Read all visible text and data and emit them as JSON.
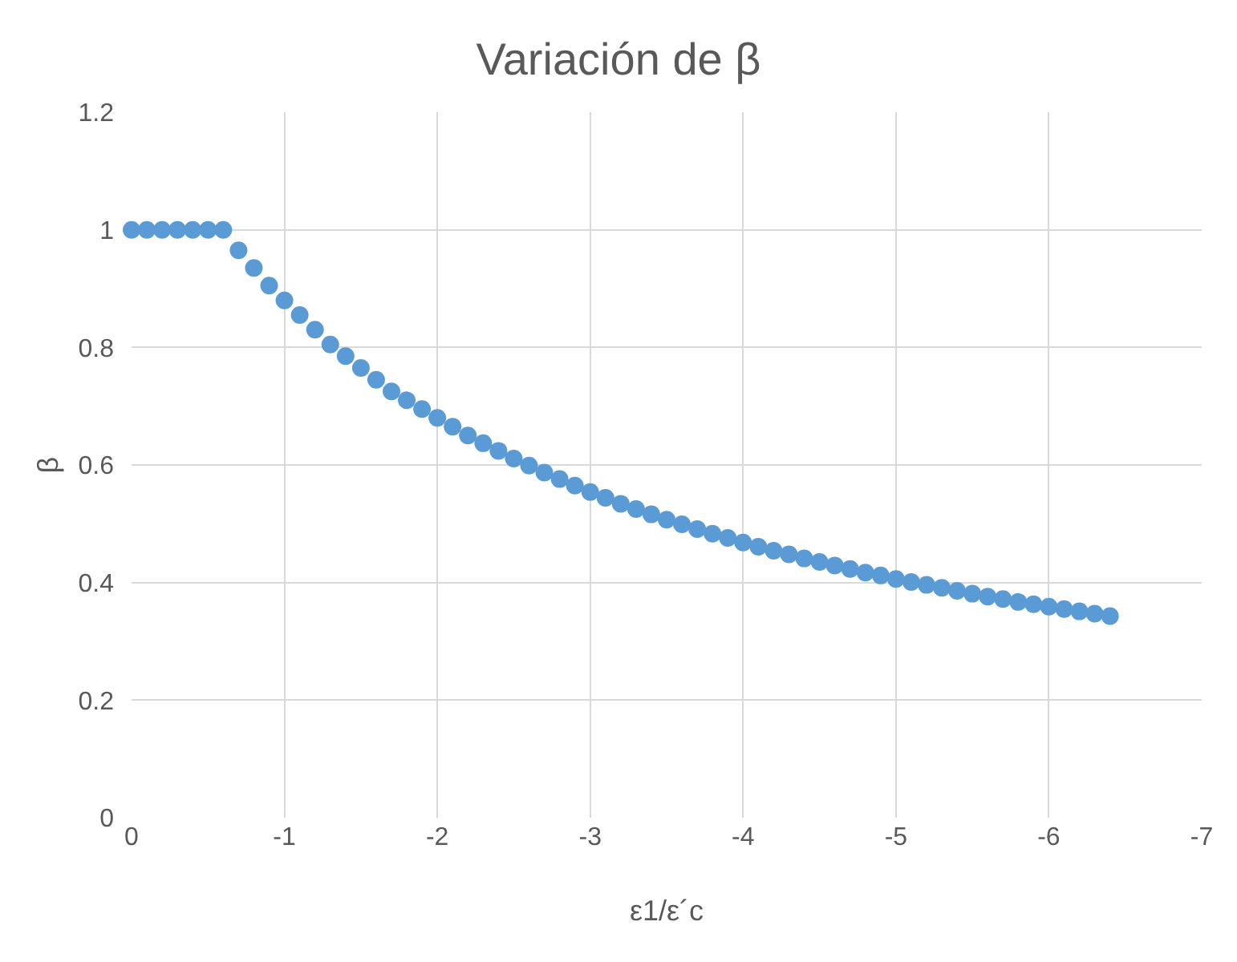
{
  "chart_data": {
    "type": "scatter",
    "title": "Variación de β",
    "xlabel": "ε1/ε´c",
    "ylabel": "β",
    "x": [
      0,
      -0.1,
      -0.2,
      -0.3,
      -0.4,
      -0.5,
      -0.6,
      -0.7,
      -0.8,
      -0.9,
      -1.0,
      -1.1,
      -1.2,
      -1.3,
      -1.4,
      -1.5,
      -1.6,
      -1.7,
      -1.8,
      -1.9,
      -2.0,
      -2.1,
      -2.2,
      -2.3,
      -2.4,
      -2.5,
      -2.6,
      -2.7,
      -2.8,
      -2.9,
      -3.0,
      -3.1,
      -3.2,
      -3.3,
      -3.4,
      -3.5,
      -3.6,
      -3.7,
      -3.8,
      -3.9,
      -4.0,
      -4.1,
      -4.2,
      -4.3,
      -4.4,
      -4.5,
      -4.6,
      -4.7,
      -4.8,
      -4.9,
      -5.0,
      -5.1,
      -5.2,
      -5.3,
      -5.4,
      -5.5,
      -5.6,
      -5.7,
      -5.8,
      -5.9,
      -6.0,
      -6.1,
      -6.2,
      -6.3,
      -6.4
    ],
    "series": [
      {
        "color": "#5b9bd5",
        "values": [
          1,
          1,
          1,
          1,
          1,
          1,
          1,
          0.965,
          0.935,
          0.905,
          0.88,
          0.855,
          0.83,
          0.805,
          0.785,
          0.765,
          0.745,
          0.725,
          0.71,
          0.695,
          0.68,
          0.665,
          0.65,
          0.637,
          0.624,
          0.611,
          0.599,
          0.587,
          0.576,
          0.565,
          0.554,
          0.544,
          0.534,
          0.525,
          0.516,
          0.507,
          0.499,
          0.491,
          0.483,
          0.476,
          0.468,
          0.461,
          0.454,
          0.448,
          0.441,
          0.435,
          0.429,
          0.423,
          0.417,
          0.412,
          0.406,
          0.401,
          0.396,
          0.391,
          0.386,
          0.381,
          0.376,
          0.372,
          0.367,
          0.363,
          0.359,
          0.355,
          0.351,
          0.347,
          0.343
        ]
      }
    ],
    "xlim": [
      0,
      -7
    ],
    "xticks": [
      0,
      -1,
      -2,
      -3,
      -4,
      -5,
      -6,
      -7
    ],
    "ylim": [
      0,
      1.2
    ],
    "yticks": [
      0,
      0.2,
      0.4,
      0.6,
      0.8,
      1,
      1.2
    ],
    "grid": true,
    "marker": "circle"
  }
}
